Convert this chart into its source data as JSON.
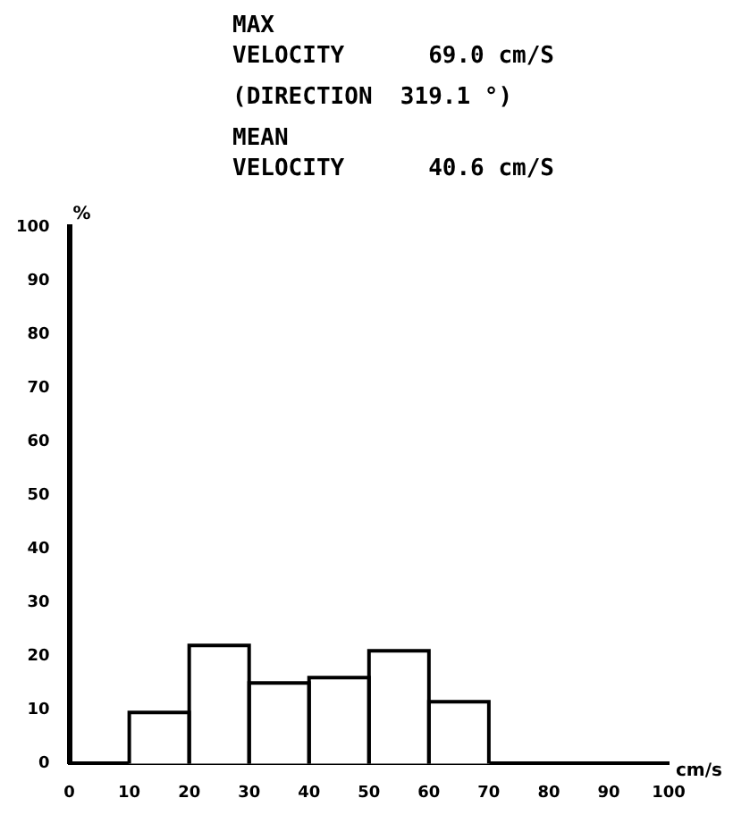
{
  "chart_data": {
    "type": "histogram",
    "xlabel": "cm/s",
    "ylabel": "%",
    "annotations": [
      "MAX\nVELOCITY      69.0 cm/S",
      "(DIRECTION  319.1 °)",
      "MEAN\nVELOCITY      40.6 cm/S"
    ],
    "bins": [
      10,
      20,
      30,
      40,
      50,
      60,
      70
    ],
    "values": [
      9.5,
      22,
      15,
      16,
      21,
      11.5
    ],
    "color": "#ffffff",
    "xlim": [
      0,
      100
    ],
    "xticks": [
      0,
      10,
      20,
      30,
      40,
      50,
      60,
      70,
      80,
      90,
      100
    ],
    "ylim": [
      0,
      100
    ],
    "yticks": [
      0,
      10,
      20,
      30,
      40,
      50,
      60,
      70,
      80,
      90,
      100
    ],
    "grid": false,
    "legend": false
  }
}
